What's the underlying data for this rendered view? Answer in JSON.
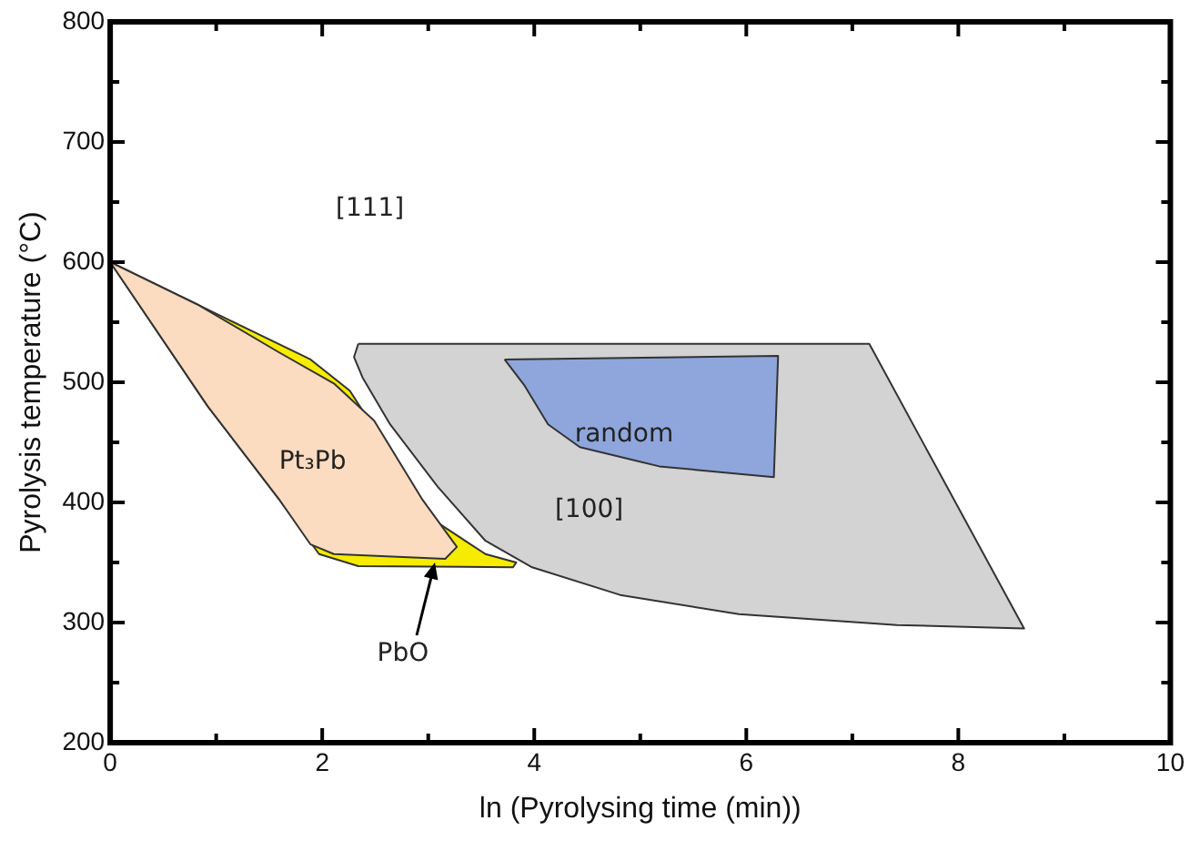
{
  "chart_data": {
    "type": "area",
    "xlabel": "ln (Pyrolysing time (min))",
    "ylabel": "Pyrolysis temperature (°C)",
    "xlim": [
      0,
      10
    ],
    "xticks": [
      0,
      {
        "value": 1,
        "label": null
      },
      2,
      {
        "value": 3,
        "label": null
      },
      4,
      {
        "value": 5,
        "label": null
      },
      6,
      {
        "value": 7,
        "label": null
      },
      8,
      {
        "value": 9,
        "label": null
      },
      10
    ],
    "ylim": [
      200,
      800
    ],
    "yticks": [
      200,
      {
        "value": 250,
        "label": null
      },
      300,
      {
        "value": 350,
        "label": null
      },
      400,
      {
        "value": 450,
        "label": null
      },
      500,
      {
        "value": 550,
        "label": null
      },
      600,
      {
        "value": 650,
        "label": null
      },
      700,
      {
        "value": 750,
        "label": null
      },
      800
    ],
    "series": [
      {
        "name": "[100]",
        "color": "#d3d3d3",
        "x": [
          2.34,
          7.16,
          8.62,
          7.42,
          5.93,
          4.81,
          3.98,
          3.54,
          3.09,
          2.64,
          2.38,
          2.3,
          2.34
        ],
        "values": [
          532,
          532,
          295,
          298,
          307,
          323,
          346,
          368,
          413,
          465,
          504,
          521,
          532
        ]
      },
      {
        "name": "PbO",
        "color": "#f5ec00",
        "x": [
          0,
          1.07,
          1.89,
          2.26,
          2.64,
          3.09,
          3.54,
          3.83,
          3.8,
          2.34,
          1.97,
          1.59,
          0.92,
          0
        ],
        "values": [
          600,
          554,
          519,
          493,
          441,
          383,
          357,
          350,
          346,
          347,
          357,
          403,
          480,
          600
        ]
      },
      {
        "name": "Pt₃Pb",
        "color": "#fbdcc0",
        "x": [
          0,
          0.92,
          1.59,
          1.89,
          2.11,
          3.16,
          3.27,
          2.94,
          2.49,
          2.11,
          1.59,
          0.84,
          0
        ],
        "values": [
          600,
          480,
          403,
          365,
          357,
          353,
          363,
          403,
          468,
          499,
          525,
          564,
          600
        ]
      },
      {
        "name": "random",
        "color": "#8ea6dc",
        "x": [
          3.72,
          6.3,
          6.26,
          5.18,
          4.43,
          4.13,
          3.91,
          3.72
        ],
        "values": [
          519,
          522,
          421,
          430,
          446,
          465,
          497,
          519
        ]
      }
    ],
    "annotations": [
      "[111]"
    ]
  }
}
